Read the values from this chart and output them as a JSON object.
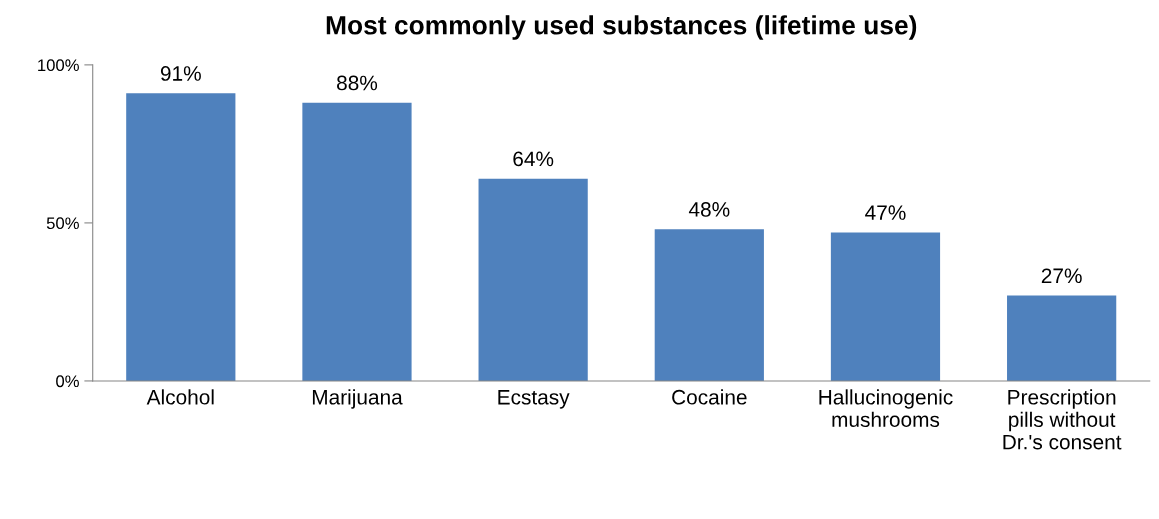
{
  "chart_data": {
    "type": "bar",
    "title": "Most commonly used substances (lifetime use)",
    "categories": [
      "Alcohol",
      "Marijuana",
      "Ecstasy",
      "Cocaine",
      "Hallucinogenic\nmushrooms",
      "Prescription\npills without\nDr.'s consent"
    ],
    "values": [
      91,
      88,
      64,
      48,
      47,
      27
    ],
    "value_labels": [
      "91%",
      "88%",
      "64%",
      "48%",
      "47%",
      "27%"
    ],
    "color": "#4f81bd",
    "ylim": [
      0,
      100
    ],
    "yticks": [
      {
        "value": 0,
        "label": "0%"
      },
      {
        "value": 50,
        "label": "50%"
      },
      {
        "value": 100,
        "label": "100%"
      }
    ],
    "grid": false,
    "legend": false
  }
}
